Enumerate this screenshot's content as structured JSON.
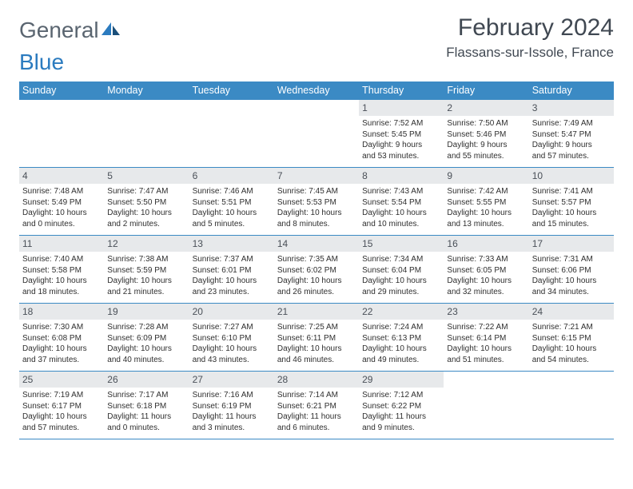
{
  "brand": {
    "part1": "General",
    "part2": "Blue"
  },
  "title": "February 2024",
  "location": "Flassans-sur-Issole, France",
  "colors": {
    "header_bg": "#3b8ac4",
    "header_text": "#ffffff",
    "daynum_bg": "#e7e9eb",
    "daynum_text": "#4a5058",
    "border": "#3b8ac4",
    "body_text": "#2f2f2f",
    "title_text": "#404852",
    "logo_gray": "#5a6570",
    "logo_blue": "#2b7bbf"
  },
  "weekdays": [
    "Sunday",
    "Monday",
    "Tuesday",
    "Wednesday",
    "Thursday",
    "Friday",
    "Saturday"
  ],
  "weeks": [
    [
      {
        "empty": true
      },
      {
        "empty": true
      },
      {
        "empty": true
      },
      {
        "empty": true
      },
      {
        "day": "1",
        "sunrise": "Sunrise: 7:52 AM",
        "sunset": "Sunset: 5:45 PM",
        "daylight1": "Daylight: 9 hours",
        "daylight2": "and 53 minutes."
      },
      {
        "day": "2",
        "sunrise": "Sunrise: 7:50 AM",
        "sunset": "Sunset: 5:46 PM",
        "daylight1": "Daylight: 9 hours",
        "daylight2": "and 55 minutes."
      },
      {
        "day": "3",
        "sunrise": "Sunrise: 7:49 AM",
        "sunset": "Sunset: 5:47 PM",
        "daylight1": "Daylight: 9 hours",
        "daylight2": "and 57 minutes."
      }
    ],
    [
      {
        "day": "4",
        "sunrise": "Sunrise: 7:48 AM",
        "sunset": "Sunset: 5:49 PM",
        "daylight1": "Daylight: 10 hours",
        "daylight2": "and 0 minutes."
      },
      {
        "day": "5",
        "sunrise": "Sunrise: 7:47 AM",
        "sunset": "Sunset: 5:50 PM",
        "daylight1": "Daylight: 10 hours",
        "daylight2": "and 2 minutes."
      },
      {
        "day": "6",
        "sunrise": "Sunrise: 7:46 AM",
        "sunset": "Sunset: 5:51 PM",
        "daylight1": "Daylight: 10 hours",
        "daylight2": "and 5 minutes."
      },
      {
        "day": "7",
        "sunrise": "Sunrise: 7:45 AM",
        "sunset": "Sunset: 5:53 PM",
        "daylight1": "Daylight: 10 hours",
        "daylight2": "and 8 minutes."
      },
      {
        "day": "8",
        "sunrise": "Sunrise: 7:43 AM",
        "sunset": "Sunset: 5:54 PM",
        "daylight1": "Daylight: 10 hours",
        "daylight2": "and 10 minutes."
      },
      {
        "day": "9",
        "sunrise": "Sunrise: 7:42 AM",
        "sunset": "Sunset: 5:55 PM",
        "daylight1": "Daylight: 10 hours",
        "daylight2": "and 13 minutes."
      },
      {
        "day": "10",
        "sunrise": "Sunrise: 7:41 AM",
        "sunset": "Sunset: 5:57 PM",
        "daylight1": "Daylight: 10 hours",
        "daylight2": "and 15 minutes."
      }
    ],
    [
      {
        "day": "11",
        "sunrise": "Sunrise: 7:40 AM",
        "sunset": "Sunset: 5:58 PM",
        "daylight1": "Daylight: 10 hours",
        "daylight2": "and 18 minutes."
      },
      {
        "day": "12",
        "sunrise": "Sunrise: 7:38 AM",
        "sunset": "Sunset: 5:59 PM",
        "daylight1": "Daylight: 10 hours",
        "daylight2": "and 21 minutes."
      },
      {
        "day": "13",
        "sunrise": "Sunrise: 7:37 AM",
        "sunset": "Sunset: 6:01 PM",
        "daylight1": "Daylight: 10 hours",
        "daylight2": "and 23 minutes."
      },
      {
        "day": "14",
        "sunrise": "Sunrise: 7:35 AM",
        "sunset": "Sunset: 6:02 PM",
        "daylight1": "Daylight: 10 hours",
        "daylight2": "and 26 minutes."
      },
      {
        "day": "15",
        "sunrise": "Sunrise: 7:34 AM",
        "sunset": "Sunset: 6:04 PM",
        "daylight1": "Daylight: 10 hours",
        "daylight2": "and 29 minutes."
      },
      {
        "day": "16",
        "sunrise": "Sunrise: 7:33 AM",
        "sunset": "Sunset: 6:05 PM",
        "daylight1": "Daylight: 10 hours",
        "daylight2": "and 32 minutes."
      },
      {
        "day": "17",
        "sunrise": "Sunrise: 7:31 AM",
        "sunset": "Sunset: 6:06 PM",
        "daylight1": "Daylight: 10 hours",
        "daylight2": "and 34 minutes."
      }
    ],
    [
      {
        "day": "18",
        "sunrise": "Sunrise: 7:30 AM",
        "sunset": "Sunset: 6:08 PM",
        "daylight1": "Daylight: 10 hours",
        "daylight2": "and 37 minutes."
      },
      {
        "day": "19",
        "sunrise": "Sunrise: 7:28 AM",
        "sunset": "Sunset: 6:09 PM",
        "daylight1": "Daylight: 10 hours",
        "daylight2": "and 40 minutes."
      },
      {
        "day": "20",
        "sunrise": "Sunrise: 7:27 AM",
        "sunset": "Sunset: 6:10 PM",
        "daylight1": "Daylight: 10 hours",
        "daylight2": "and 43 minutes."
      },
      {
        "day": "21",
        "sunrise": "Sunrise: 7:25 AM",
        "sunset": "Sunset: 6:11 PM",
        "daylight1": "Daylight: 10 hours",
        "daylight2": "and 46 minutes."
      },
      {
        "day": "22",
        "sunrise": "Sunrise: 7:24 AM",
        "sunset": "Sunset: 6:13 PM",
        "daylight1": "Daylight: 10 hours",
        "daylight2": "and 49 minutes."
      },
      {
        "day": "23",
        "sunrise": "Sunrise: 7:22 AM",
        "sunset": "Sunset: 6:14 PM",
        "daylight1": "Daylight: 10 hours",
        "daylight2": "and 51 minutes."
      },
      {
        "day": "24",
        "sunrise": "Sunrise: 7:21 AM",
        "sunset": "Sunset: 6:15 PM",
        "daylight1": "Daylight: 10 hours",
        "daylight2": "and 54 minutes."
      }
    ],
    [
      {
        "day": "25",
        "sunrise": "Sunrise: 7:19 AM",
        "sunset": "Sunset: 6:17 PM",
        "daylight1": "Daylight: 10 hours",
        "daylight2": "and 57 minutes."
      },
      {
        "day": "26",
        "sunrise": "Sunrise: 7:17 AM",
        "sunset": "Sunset: 6:18 PM",
        "daylight1": "Daylight: 11 hours",
        "daylight2": "and 0 minutes."
      },
      {
        "day": "27",
        "sunrise": "Sunrise: 7:16 AM",
        "sunset": "Sunset: 6:19 PM",
        "daylight1": "Daylight: 11 hours",
        "daylight2": "and 3 minutes."
      },
      {
        "day": "28",
        "sunrise": "Sunrise: 7:14 AM",
        "sunset": "Sunset: 6:21 PM",
        "daylight1": "Daylight: 11 hours",
        "daylight2": "and 6 minutes."
      },
      {
        "day": "29",
        "sunrise": "Sunrise: 7:12 AM",
        "sunset": "Sunset: 6:22 PM",
        "daylight1": "Daylight: 11 hours",
        "daylight2": "and 9 minutes."
      },
      {
        "empty": true
      },
      {
        "empty": true
      }
    ]
  ]
}
